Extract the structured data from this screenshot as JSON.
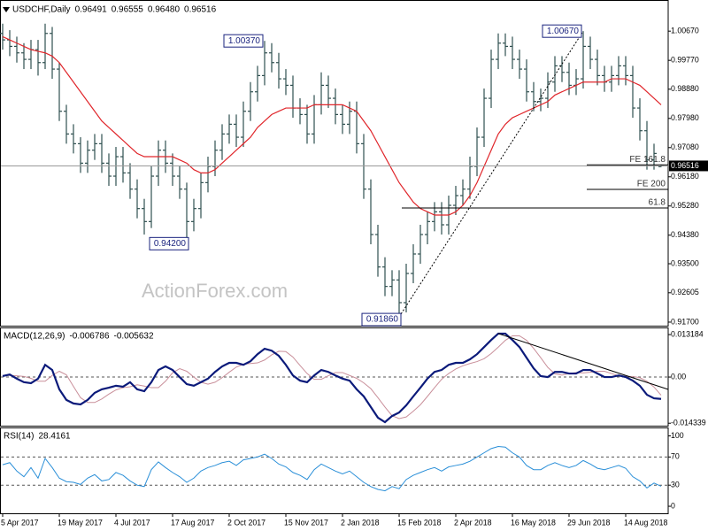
{
  "chart_data": [
    {
      "type": "ohlc",
      "title": "USDCHF,Daily",
      "ohlc_labels": [
        "0.96491",
        "0.96555",
        "0.96480",
        "0.96516"
      ],
      "watermark": "ActionForex.com",
      "color": "#2f4f4f",
      "grid": false,
      "categories": [
        "5 Apr 2017",
        null,
        null,
        null,
        null,
        null,
        null,
        null,
        "19 May 2017",
        null,
        null,
        null,
        null,
        null,
        null,
        null,
        "4 Jul 2017",
        null,
        null,
        null,
        null,
        null,
        null,
        null,
        "17 Aug 2017",
        null,
        null,
        null,
        null,
        null,
        null,
        null,
        "2 Oct 2017",
        null,
        null,
        null,
        null,
        null,
        null,
        null,
        "15 Nov 2017",
        null,
        null,
        null,
        null,
        null,
        null,
        null,
        "2 Jan 2018",
        null,
        null,
        null,
        null,
        null,
        null,
        null,
        "15 Feb 2018",
        null,
        null,
        null,
        null,
        null,
        null,
        null,
        "2 Apr 2018",
        null,
        null,
        null,
        null,
        null,
        null,
        null,
        "16 May 2018",
        null,
        null,
        null,
        null,
        null,
        null,
        null,
        "29 Jun 2018",
        null,
        null,
        null,
        null,
        null,
        null,
        null,
        "14 Aug 2018",
        null,
        null,
        null,
        null,
        null
      ],
      "open": [
        1.006,
        1.004,
        1.002,
        1.0,
        0.998,
        1.001,
        0.997,
        1.006,
        0.995,
        0.982,
        0.975,
        0.972,
        0.966,
        0.97,
        0.972,
        0.966,
        0.962,
        0.968,
        0.963,
        0.958,
        0.952,
        0.948,
        0.962,
        0.97,
        0.966,
        0.962,
        0.958,
        0.948,
        0.952,
        0.96,
        0.965,
        0.97,
        0.975,
        0.978,
        0.974,
        0.982,
        0.988,
        0.993,
        1.0,
        0.997,
        0.992,
        0.99,
        0.983,
        0.981,
        0.975,
        0.984,
        0.99,
        0.986,
        0.981,
        0.978,
        0.982,
        0.972,
        0.958,
        0.944,
        0.934,
        0.928,
        0.93,
        0.923,
        0.932,
        0.938,
        0.944,
        0.948,
        0.951,
        0.947,
        0.953,
        0.956,
        0.958,
        0.965,
        0.974,
        0.986,
        0.998,
        1.003,
        1.002,
        0.998,
        0.995,
        0.988,
        0.985,
        0.986,
        0.991,
        0.996,
        0.994,
        0.99,
        0.992,
        1.002,
        0.998,
        0.993,
        0.991,
        0.993,
        0.996,
        0.993,
        0.983,
        0.976,
        0.967,
        0.96491
      ],
      "high": [
        1.009,
        1.007,
        1.005,
        1.003,
        1.004,
        1.004,
        1.009,
        1.008,
        0.997,
        0.984,
        0.978,
        0.974,
        0.973,
        0.975,
        0.975,
        0.969,
        0.971,
        0.971,
        0.966,
        0.961,
        0.955,
        0.965,
        0.973,
        0.973,
        0.969,
        0.965,
        0.96,
        0.955,
        0.963,
        0.968,
        0.973,
        0.978,
        0.981,
        0.981,
        0.985,
        0.991,
        0.996,
        1.0037,
        1.003,
        1.0,
        0.995,
        0.993,
        0.986,
        0.984,
        0.987,
        0.994,
        0.993,
        0.989,
        0.984,
        0.985,
        0.985,
        0.975,
        0.961,
        0.947,
        0.937,
        0.933,
        0.933,
        0.935,
        0.941,
        0.947,
        0.951,
        0.954,
        0.954,
        0.956,
        0.959,
        0.961,
        0.968,
        0.977,
        0.989,
        1.001,
        1.006,
        1.006,
        1.005,
        1.001,
        0.998,
        0.991,
        0.989,
        0.994,
        0.999,
        0.999,
        0.997,
        0.995,
        1.0067,
        1.005,
        1.001,
        0.996,
        0.996,
        0.999,
        0.999,
        0.996,
        0.986,
        0.979,
        0.972,
        0.96555
      ],
      "low": [
        1.001,
        0.999,
        0.997,
        0.995,
        0.995,
        0.993,
        0.995,
        0.992,
        0.979,
        0.972,
        0.969,
        0.963,
        0.963,
        0.967,
        0.963,
        0.959,
        0.959,
        0.96,
        0.955,
        0.949,
        0.944,
        0.946,
        0.959,
        0.963,
        0.959,
        0.955,
        0.942,
        0.945,
        0.949,
        0.957,
        0.962,
        0.967,
        0.972,
        0.971,
        0.971,
        0.979,
        0.985,
        0.99,
        0.994,
        0.989,
        0.987,
        0.98,
        0.978,
        0.972,
        0.972,
        0.981,
        0.983,
        0.978,
        0.975,
        0.975,
        0.969,
        0.955,
        0.941,
        0.931,
        0.925,
        0.925,
        0.9186,
        0.92,
        0.929,
        0.935,
        0.941,
        0.945,
        0.944,
        0.944,
        0.95,
        0.953,
        0.955,
        0.962,
        0.971,
        0.983,
        0.995,
        0.999,
        0.995,
        0.992,
        0.985,
        0.982,
        0.982,
        0.983,
        0.988,
        0.991,
        0.987,
        0.987,
        0.989,
        0.995,
        0.99,
        0.988,
        0.988,
        0.99,
        0.99,
        0.98,
        0.973,
        0.964,
        0.964,
        0.9648
      ],
      "close": [
        1.004,
        1.002,
        1.0,
        0.998,
        1.001,
        0.997,
        1.006,
        0.995,
        0.982,
        0.975,
        0.972,
        0.966,
        0.97,
        0.972,
        0.966,
        0.962,
        0.968,
        0.963,
        0.958,
        0.952,
        0.948,
        0.962,
        0.97,
        0.966,
        0.962,
        0.958,
        0.948,
        0.952,
        0.96,
        0.965,
        0.97,
        0.975,
        0.978,
        0.974,
        0.982,
        0.988,
        0.993,
        1.0,
        0.997,
        0.992,
        0.99,
        0.983,
        0.981,
        0.975,
        0.984,
        0.99,
        0.986,
        0.981,
        0.978,
        0.982,
        0.972,
        0.958,
        0.944,
        0.934,
        0.928,
        0.93,
        0.923,
        0.932,
        0.938,
        0.944,
        0.948,
        0.951,
        0.947,
        0.953,
        0.956,
        0.958,
        0.965,
        0.974,
        0.986,
        0.998,
        1.003,
        1.002,
        0.998,
        0.995,
        0.988,
        0.985,
        0.986,
        0.991,
        0.996,
        0.994,
        0.99,
        0.992,
        1.002,
        0.998,
        0.993,
        0.991,
        0.993,
        0.996,
        0.993,
        0.983,
        0.976,
        0.967,
        0.969,
        0.96516
      ],
      "ma": {
        "color": "#e0262b",
        "values": [
          1.005,
          1.004,
          1.003,
          1.002,
          1.001,
          1.0005,
          1.0,
          0.999,
          0.997,
          0.994,
          0.991,
          0.988,
          0.985,
          0.982,
          0.979,
          0.977,
          0.975,
          0.973,
          0.971,
          0.969,
          0.968,
          0.968,
          0.968,
          0.968,
          0.968,
          0.967,
          0.966,
          0.964,
          0.963,
          0.963,
          0.964,
          0.966,
          0.968,
          0.97,
          0.972,
          0.974,
          0.977,
          0.979,
          0.981,
          0.982,
          0.983,
          0.983,
          0.983,
          0.983,
          0.984,
          0.984,
          0.984,
          0.984,
          0.984,
          0.983,
          0.982,
          0.979,
          0.976,
          0.972,
          0.968,
          0.964,
          0.96,
          0.957,
          0.954,
          0.952,
          0.951,
          0.95,
          0.95,
          0.95,
          0.951,
          0.953,
          0.956,
          0.96,
          0.965,
          0.97,
          0.975,
          0.978,
          0.98,
          0.981,
          0.982,
          0.983,
          0.984,
          0.985,
          0.987,
          0.988,
          0.989,
          0.99,
          0.991,
          0.991,
          0.991,
          0.991,
          0.992,
          0.992,
          0.992,
          0.991,
          0.99,
          0.988,
          0.986,
          0.984
        ]
      },
      "annotations": [
        {
          "value": 1.0037,
          "label": "1.00370"
        },
        {
          "value": 0.942,
          "label": "0.94200"
        },
        {
          "value": 0.9186,
          "label": "0.91860"
        },
        {
          "value": 1.0067,
          "label": "1.00670"
        }
      ],
      "levels": [
        {
          "value": 0.9655,
          "label": "FE 161.8"
        },
        {
          "value": 0.9579,
          "label": "FE 200"
        },
        {
          "value": 0.9522,
          "label": "61.8"
        }
      ],
      "ylim": [
        0.9159,
        1.0163
      ],
      "yticks": [
        {
          "value": 1.0067,
          "label": "1.00670"
        },
        {
          "value": 0.9977,
          "label": "0.99770"
        },
        {
          "value": 0.9888,
          "label": "0.98880"
        },
        {
          "value": 0.9798,
          "label": "0.97980"
        },
        {
          "value": 0.9708,
          "label": "0.97080"
        },
        {
          "value": 0.9618,
          "label": "0.96180"
        },
        {
          "value": 0.9528,
          "label": "0.95280"
        },
        {
          "value": 0.9438,
          "label": "0.94380"
        },
        {
          "value": 0.935,
          "label": "0.93500"
        },
        0.92605,
        {
          "value": 0.917,
          "label": "0.91700"
        }
      ]
    },
    {
      "type": "line",
      "title": "MACD(12,26,9)",
      "grid": false,
      "series": [
        {
          "color": "#0b1a7a",
          "values": [
            0.0003,
            0.0008,
            -0.0005,
            -0.0016,
            -0.0019,
            -0.0005,
            0.0038,
            0.0022,
            -0.0038,
            -0.0071,
            -0.0082,
            -0.0085,
            -0.0071,
            -0.0049,
            -0.0038,
            -0.0033,
            -0.0027,
            -0.003,
            -0.0016,
            -0.0038,
            -0.0044,
            -0.0016,
            0.0022,
            0.0033,
            0.0022,
            0,
            -0.0022,
            -0.0027,
            -0.0016,
            -0.0005,
            0.0016,
            0.0033,
            0.0044,
            0.0044,
            0.0038,
            0.0049,
            0.0071,
            0.0088,
            0.0082,
            0.0066,
            0.0038,
            0.0005,
            -0.0011,
            -0.0016,
            0.0005,
            0.0022,
            0.0016,
            0.0005,
            -0.0005,
            -0.0011,
            -0.0038,
            -0.006,
            -0.0093,
            -0.0126,
            -0.014,
            -0.0121,
            -0.011,
            -0.0088,
            -0.006,
            -0.0033,
            -0.0005,
            0.0016,
            0.0022,
            0.0038,
            0.0044,
            0.0044,
            0.0055,
            0.0071,
            0.0093,
            0.0115,
            0.0135,
            0.0135,
            0.0115,
            0.0093,
            0.006,
            0.0027,
            0.0003,
            0,
            0.0016,
            0.0016,
            0.0011,
            0.0011,
            0.0022,
            0.0022,
            0.0011,
            0,
            0,
            0.0005,
            0,
            -0.0011,
            -0.0027,
            -0.0055,
            -0.0066,
            -0.006786
          ]
        },
        {
          "color": "#c98f9a",
          "values": [
            0.0005,
            0.0005,
            0.0004,
            0.0002,
            -0.0004,
            -0.0013,
            -0.0013,
            0.0005,
            0.0018,
            0.0007,
            -0.0029,
            -0.0064,
            -0.0079,
            -0.0079,
            -0.0068,
            -0.0053,
            -0.004,
            -0.0033,
            -0.003,
            -0.0024,
            -0.0028,
            -0.0033,
            -0.0033,
            -0.0013,
            0.0013,
            0.0026,
            0.0018,
            0,
            -0.0016,
            -0.0022,
            -0.0016,
            -0.0002,
            0.0015,
            0.0031,
            0.004,
            0.0042,
            0.0044,
            0.0053,
            0.0069,
            0.008,
            0.0079,
            0.0062,
            0.0036,
            0.0011,
            -0.0007,
            -0.0007,
            0.0004,
            0.0014,
            0.0014,
            0.0005,
            -0.0004,
            -0.0018,
            -0.0036,
            -0.0064,
            -0.0093,
            -0.012,
            -0.0129,
            -0.0124,
            -0.0106,
            -0.0086,
            -0.006,
            -0.0033,
            -0.0007,
            0.0011,
            0.0025,
            0.0035,
            0.0042,
            0.0048,
            0.0057,
            0.0073,
            0.0093,
            0.0114,
            0.0128,
            0.0128,
            0.0114,
            0.0089,
            0.006,
            0.003,
            0.001,
            0.0006,
            0.0011,
            0.0014,
            0.0013,
            0.0015,
            0.0018,
            0.0018,
            0.0011,
            0.0004,
            0.0002,
            0.0002,
            -0.0002,
            -0.0013,
            -0.0031,
            -0.005632
          ]
        }
      ],
      "levels": [
        0
      ],
      "ylim": [
        -0.0151,
        0.0154
      ],
      "yticks": [
        0.013184,
        {
          "value": 0,
          "label": "0.00"
        },
        -0.014339
      ]
    },
    {
      "type": "line",
      "title": "RSI(14)",
      "grid": false,
      "color": "#2a8fd8",
      "values": [
        59,
        62,
        50,
        42,
        55,
        40,
        68,
        55,
        40,
        35,
        34,
        31,
        40,
        45,
        36,
        38,
        48,
        44,
        36,
        30,
        28,
        52,
        63,
        55,
        48,
        42,
        34,
        40,
        50,
        55,
        58,
        62,
        64,
        58,
        66,
        68,
        70,
        74,
        68,
        60,
        56,
        48,
        44,
        38,
        52,
        60,
        55,
        50,
        46,
        50,
        42,
        34,
        28,
        24,
        22,
        28,
        25,
        38,
        44,
        48,
        52,
        55,
        50,
        56,
        58,
        60,
        64,
        70,
        76,
        82,
        85,
        84,
        76,
        70,
        58,
        52,
        52,
        58,
        62,
        58,
        55,
        58,
        65,
        60,
        54,
        52,
        55,
        58,
        54,
        42,
        36,
        26,
        33,
        28.4161
      ],
      "levels": [
        30,
        70
      ],
      "ylim": [
        -10,
        112
      ],
      "yticks": [
        100,
        70,
        30,
        0
      ]
    }
  ]
}
